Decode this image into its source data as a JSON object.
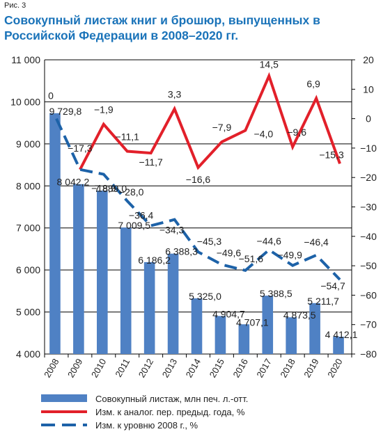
{
  "figure_label": "Рис. 3",
  "title": "Совокупный листаж книг и брошюр, выпущенных в Российской Федерации в 2008–2020 гг.",
  "colors": {
    "bar": "#4f81c4",
    "red_line": "#e2202a",
    "blue_dashed": "#1d62a8",
    "title": "#1a73b9",
    "grid": "#000000"
  },
  "chart_data": {
    "type": "bar",
    "categories": [
      "2008",
      "2009",
      "2010",
      "2011",
      "2012",
      "2013",
      "2014",
      "2015",
      "2016",
      "2017",
      "2018",
      "2019",
      "2020"
    ],
    "left_axis": {
      "ylim": [
        4000,
        11000
      ],
      "ticks": [
        4000,
        5000,
        6000,
        7000,
        8000,
        9000,
        10000,
        11000
      ],
      "tick_labels": [
        "4 000",
        "5 000",
        "6 000",
        "7 000",
        "8 000",
        "9 000",
        "10 000",
        "11 000"
      ]
    },
    "right_axis": {
      "ylim": [
        -80,
        20
      ],
      "ticks": [
        -80,
        -70,
        -60,
        -50,
        -40,
        -30,
        -20,
        -10,
        0,
        10,
        20
      ],
      "tick_labels": [
        "−80",
        "−70",
        "−60",
        "−50",
        "−40",
        "−30",
        "−20",
        "−10",
        "0",
        "10",
        "20"
      ]
    },
    "grid": "horizontal",
    "legend_position": "bottom",
    "series": [
      {
        "name": "Совокупный листаж, млн печ. л.-отт.",
        "kind": "bar",
        "axis": "left",
        "values": [
          9729.8,
          8042.2,
          7889.0,
          7009.5,
          6186.2,
          6388.3,
          5325.0,
          4904.7,
          4707.1,
          5388.5,
          4873.5,
          5211.7,
          4412.1
        ],
        "labels": [
          "9 729,8",
          "8 042,2",
          "7 889,0",
          "7 009,5",
          "6 186,2",
          "6 388,3",
          "5 325,0",
          "4 904,7",
          "4 707,1",
          "5 388,5",
          "4 873,5",
          "5 211,7",
          "4 412,1"
        ]
      },
      {
        "name": "Изм. к аналог. пер. предыд. года, %",
        "kind": "line",
        "axis": "right",
        "values": [
          null,
          -17.3,
          -1.9,
          -11.1,
          -11.7,
          3.3,
          -16.6,
          -7.9,
          -4.0,
          14.5,
          -9.6,
          6.9,
          -15.3
        ],
        "labels": [
          "",
          "−17,3",
          "−1,9",
          "−11,1",
          "−11,7",
          "3,3",
          "−16,6",
          "−7,9",
          "−4,0",
          "14,5",
          "−9,6",
          "6,9",
          "−15,3"
        ]
      },
      {
        "name": "Изм. к уровню 2008 г., %",
        "kind": "dashed-line",
        "axis": "right",
        "values": [
          0,
          -17.3,
          -18.9,
          -28.0,
          -36.4,
          -34.3,
          -45.3,
          -49.6,
          -51.6,
          -44.6,
          -49.9,
          -46.4,
          -54.7
        ],
        "labels": [
          "0",
          "",
          "−18,9",
          "−28,0",
          "−36,4",
          "−34,3",
          "−45,3",
          "−49,6",
          "−51,6",
          "−44,6",
          "−49,9",
          "−46,4",
          "−54,7"
        ]
      }
    ]
  }
}
